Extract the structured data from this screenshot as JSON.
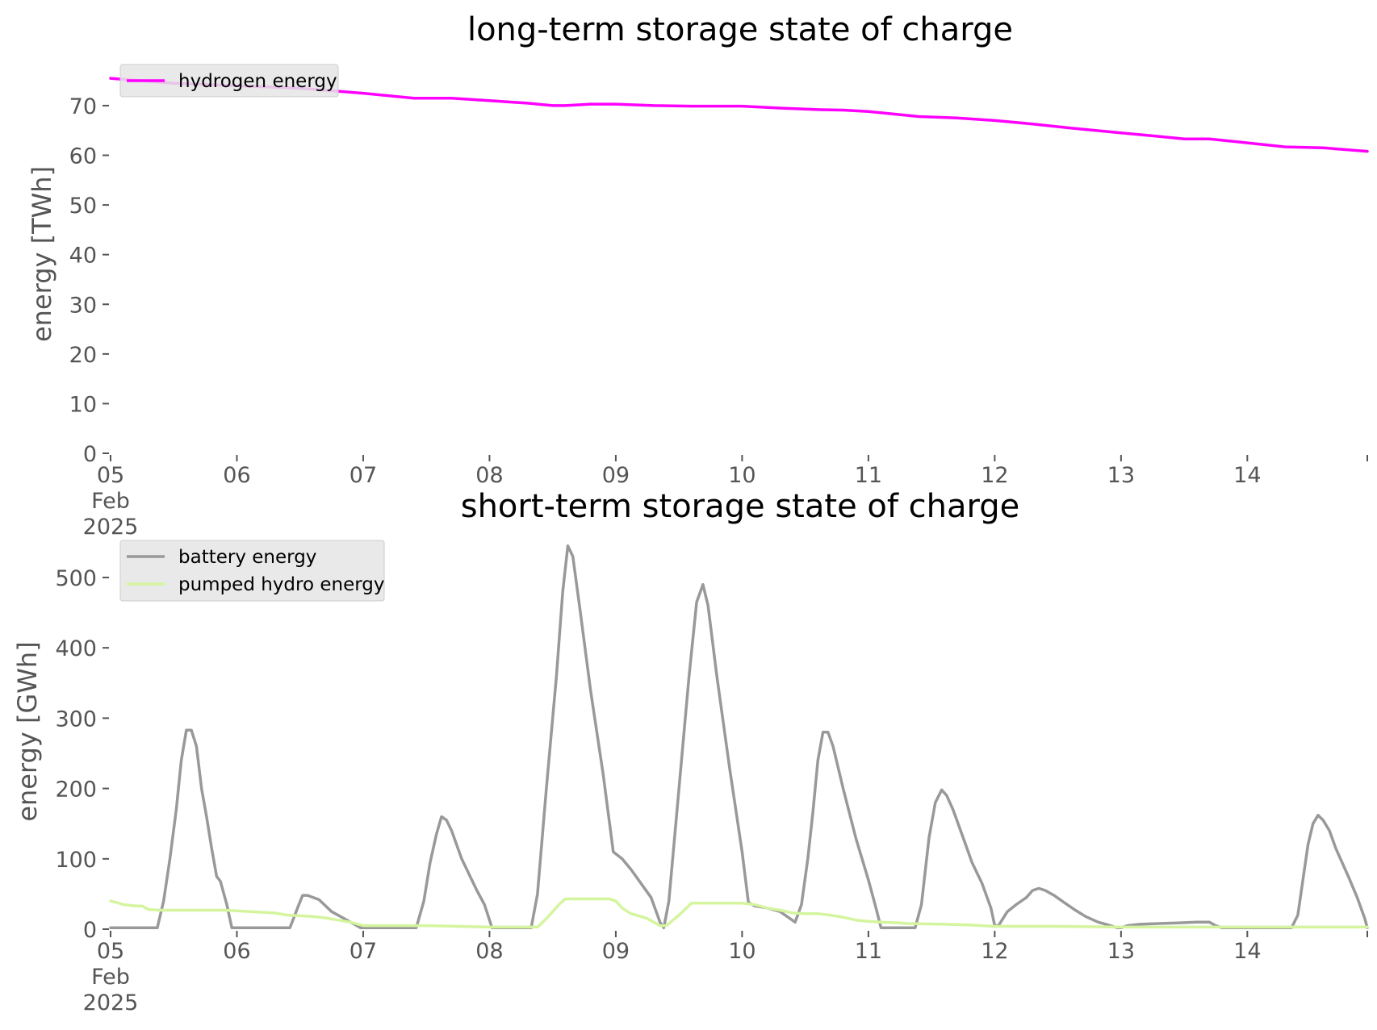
{
  "chart_data": [
    {
      "type": "line",
      "title": "long-term storage state of charge",
      "ylabel": "energy [TWh]",
      "xlabel": "",
      "ylim": [
        0,
        76
      ],
      "xlim": [
        0,
        9.95
      ],
      "x_unit": "days since 05 Feb 2025 00:00",
      "x_ticks": [
        {
          "x": 0,
          "lines": [
            "05",
            "Feb",
            "2025"
          ]
        },
        {
          "x": 1,
          "lines": [
            "06"
          ]
        },
        {
          "x": 2,
          "lines": [
            "07"
          ]
        },
        {
          "x": 3,
          "lines": [
            "08"
          ]
        },
        {
          "x": 4,
          "lines": [
            "09"
          ]
        },
        {
          "x": 5,
          "lines": [
            "10"
          ]
        },
        {
          "x": 6,
          "lines": [
            "11"
          ]
        },
        {
          "x": 7,
          "lines": [
            "12"
          ]
        },
        {
          "x": 8,
          "lines": [
            "13"
          ]
        },
        {
          "x": 9,
          "lines": [
            "14"
          ]
        }
      ],
      "y_ticks": [
        0,
        10,
        20,
        30,
        40,
        50,
        60,
        70
      ],
      "legend": "upper-left",
      "series": [
        {
          "name": "hydrogen energy",
          "color": "#ff00ff",
          "points": [
            [
              0,
              75.5
            ],
            [
              0.5,
              74.5
            ],
            [
              1,
              74.0
            ],
            [
              1.5,
              73.5
            ],
            [
              2,
              72.5
            ],
            [
              2.4,
              71.5
            ],
            [
              2.7,
              71.5
            ],
            [
              3,
              71.0
            ],
            [
              3.3,
              70.5
            ],
            [
              3.5,
              70.0
            ],
            [
              3.6,
              70.0
            ],
            [
              3.8,
              70.3
            ],
            [
              4,
              70.3
            ],
            [
              4.3,
              70.0
            ],
            [
              4.6,
              69.9
            ],
            [
              5.0,
              69.9
            ],
            [
              5.3,
              69.5
            ],
            [
              5.6,
              69.2
            ],
            [
              5.8,
              69.1
            ],
            [
              6.0,
              68.8
            ],
            [
              6.2,
              68.3
            ],
            [
              6.4,
              67.8
            ],
            [
              6.7,
              67.5
            ],
            [
              7.0,
              67.0
            ],
            [
              7.3,
              66.3
            ],
            [
              7.6,
              65.5
            ],
            [
              8.0,
              64.5
            ],
            [
              8.3,
              63.8
            ],
            [
              8.5,
              63.3
            ],
            [
              8.7,
              63.3
            ],
            [
              9.0,
              62.5
            ],
            [
              9.3,
              61.7
            ],
            [
              9.6,
              61.5
            ],
            [
              9.95,
              60.8
            ]
          ]
        }
      ]
    },
    {
      "type": "line",
      "title": "short-term storage state of charge",
      "ylabel": "energy [GWh]",
      "xlabel": "",
      "ylim": [
        0,
        555
      ],
      "xlim": [
        0,
        9.95
      ],
      "x_unit": "days since 05 Feb 2025 00:00",
      "x_ticks": [
        {
          "x": 0,
          "lines": [
            "05",
            "Feb",
            "2025"
          ]
        },
        {
          "x": 1,
          "lines": [
            "06"
          ]
        },
        {
          "x": 2,
          "lines": [
            "07"
          ]
        },
        {
          "x": 3,
          "lines": [
            "08"
          ]
        },
        {
          "x": 4,
          "lines": [
            "09"
          ]
        },
        {
          "x": 5,
          "lines": [
            "10"
          ]
        },
        {
          "x": 6,
          "lines": [
            "11"
          ]
        },
        {
          "x": 7,
          "lines": [
            "12"
          ]
        },
        {
          "x": 8,
          "lines": [
            "13"
          ]
        },
        {
          "x": 9,
          "lines": [
            "14"
          ]
        }
      ],
      "y_ticks": [
        0,
        100,
        200,
        300,
        400,
        500
      ],
      "legend": "upper-left",
      "series": [
        {
          "name": "battery energy",
          "color": "#999999",
          "points": [
            [
              0,
              2
            ],
            [
              0.37,
              2
            ],
            [
              0.42,
              40
            ],
            [
              0.47,
              100
            ],
            [
              0.52,
              170
            ],
            [
              0.56,
              240
            ],
            [
              0.6,
              283
            ],
            [
              0.64,
              283
            ],
            [
              0.68,
              260
            ],
            [
              0.72,
              200
            ],
            [
              0.76,
              160
            ],
            [
              0.8,
              115
            ],
            [
              0.84,
              75
            ],
            [
              0.87,
              68
            ],
            [
              0.92,
              35
            ],
            [
              0.96,
              2
            ],
            [
              1.42,
              2
            ],
            [
              1.48,
              30
            ],
            [
              1.52,
              48
            ],
            [
              1.56,
              48
            ],
            [
              1.65,
              42
            ],
            [
              1.75,
              25
            ],
            [
              1.85,
              15
            ],
            [
              1.92,
              8
            ],
            [
              1.98,
              2
            ],
            [
              2.42,
              2
            ],
            [
              2.48,
              40
            ],
            [
              2.53,
              95
            ],
            [
              2.58,
              135
            ],
            [
              2.62,
              160
            ],
            [
              2.66,
              155
            ],
            [
              2.7,
              140
            ],
            [
              2.78,
              100
            ],
            [
              2.9,
              55
            ],
            [
              2.96,
              35
            ],
            [
              3.02,
              2
            ],
            [
              3.33,
              2
            ],
            [
              3.38,
              50
            ],
            [
              3.45,
              200
            ],
            [
              3.53,
              360
            ],
            [
              3.58,
              480
            ],
            [
              3.62,
              545
            ],
            [
              3.66,
              530
            ],
            [
              3.72,
              450
            ],
            [
              3.8,
              340
            ],
            [
              3.9,
              220
            ],
            [
              3.98,
              110
            ],
            [
              4.05,
              100
            ],
            [
              4.12,
              85
            ],
            [
              4.2,
              65
            ],
            [
              4.28,
              45
            ],
            [
              4.35,
              10
            ],
            [
              4.38,
              2
            ],
            [
              4.42,
              40
            ],
            [
              4.5,
              200
            ],
            [
              4.58,
              360
            ],
            [
              4.64,
              465
            ],
            [
              4.69,
              490
            ],
            [
              4.73,
              460
            ],
            [
              4.8,
              360
            ],
            [
              4.9,
              230
            ],
            [
              5.0,
              110
            ],
            [
              5.05,
              38
            ],
            [
              5.1,
              33
            ],
            [
              5.2,
              30
            ],
            [
              5.3,
              25
            ],
            [
              5.38,
              15
            ],
            [
              5.42,
              10
            ],
            [
              5.47,
              35
            ],
            [
              5.52,
              100
            ],
            [
              5.56,
              165
            ],
            [
              5.6,
              240
            ],
            [
              5.64,
              280
            ],
            [
              5.68,
              280
            ],
            [
              5.72,
              260
            ],
            [
              5.8,
              200
            ],
            [
              5.9,
              130
            ],
            [
              6.0,
              70
            ],
            [
              6.06,
              30
            ],
            [
              6.1,
              2
            ],
            [
              6.37,
              2
            ],
            [
              6.42,
              35
            ],
            [
              6.48,
              130
            ],
            [
              6.53,
              180
            ],
            [
              6.58,
              198
            ],
            [
              6.62,
              190
            ],
            [
              6.67,
              170
            ],
            [
              6.75,
              130
            ],
            [
              6.82,
              95
            ],
            [
              6.9,
              65
            ],
            [
              6.97,
              30
            ],
            [
              7.0,
              5
            ],
            [
              7.03,
              5
            ],
            [
              7.1,
              25
            ],
            [
              7.17,
              35
            ],
            [
              7.25,
              45
            ],
            [
              7.3,
              55
            ],
            [
              7.35,
              58
            ],
            [
              7.4,
              55
            ],
            [
              7.47,
              48
            ],
            [
              7.55,
              38
            ],
            [
              7.63,
              28
            ],
            [
              7.72,
              18
            ],
            [
              7.82,
              10
            ],
            [
              7.9,
              6
            ],
            [
              7.97,
              2
            ],
            [
              8.0,
              2
            ],
            [
              8.05,
              5
            ],
            [
              8.15,
              7
            ],
            [
              8.3,
              8
            ],
            [
              8.45,
              9
            ],
            [
              8.6,
              10
            ],
            [
              8.7,
              10
            ],
            [
              8.75,
              5
            ],
            [
              8.8,
              2
            ],
            [
              9.35,
              2
            ],
            [
              9.4,
              20
            ],
            [
              9.44,
              70
            ],
            [
              9.48,
              120
            ],
            [
              9.52,
              150
            ],
            [
              9.56,
              162
            ],
            [
              9.6,
              155
            ],
            [
              9.65,
              140
            ],
            [
              9.7,
              115
            ],
            [
              9.75,
              95
            ],
            [
              9.8,
              75
            ],
            [
              9.87,
              45
            ],
            [
              9.93,
              15
            ],
            [
              9.95,
              2
            ]
          ]
        },
        {
          "name": "pumped hydro energy",
          "color": "#d4f59e",
          "points": [
            [
              0,
              40
            ],
            [
              0.05,
              38
            ],
            [
              0.1,
              35
            ],
            [
              0.2,
              33
            ],
            [
              0.25,
              33
            ],
            [
              0.3,
              28
            ],
            [
              0.4,
              27
            ],
            [
              0.8,
              27
            ],
            [
              0.9,
              27
            ],
            [
              1.0,
              26
            ],
            [
              1.2,
              24
            ],
            [
              1.3,
              23
            ],
            [
              1.4,
              20
            ],
            [
              1.5,
              19
            ],
            [
              1.6,
              18
            ],
            [
              1.7,
              16
            ],
            [
              1.8,
              13
            ],
            [
              1.9,
              10
            ],
            [
              2.0,
              5
            ],
            [
              2.5,
              5
            ],
            [
              3.0,
              3
            ],
            [
              3.3,
              3
            ],
            [
              3.38,
              3
            ],
            [
              3.45,
              15
            ],
            [
              3.55,
              35
            ],
            [
              3.6,
              43
            ],
            [
              3.7,
              43
            ],
            [
              3.95,
              43
            ],
            [
              4.0,
              40
            ],
            [
              4.05,
              30
            ],
            [
              4.12,
              22
            ],
            [
              4.2,
              18
            ],
            [
              4.25,
              15
            ],
            [
              4.3,
              10
            ],
            [
              4.35,
              5
            ],
            [
              4.4,
              5
            ],
            [
              4.5,
              20
            ],
            [
              4.6,
              37
            ],
            [
              4.7,
              37
            ],
            [
              5.0,
              37
            ],
            [
              5.1,
              35
            ],
            [
              5.2,
              30
            ],
            [
              5.3,
              27
            ],
            [
              5.4,
              23
            ],
            [
              5.5,
              22
            ],
            [
              5.6,
              22
            ],
            [
              5.7,
              20
            ],
            [
              5.8,
              17
            ],
            [
              5.9,
              13
            ],
            [
              6.0,
              11
            ],
            [
              6.1,
              10
            ],
            [
              6.25,
              9
            ],
            [
              6.3,
              8
            ],
            [
              6.6,
              7
            ],
            [
              6.8,
              6
            ],
            [
              7.0,
              4
            ],
            [
              7.5,
              4
            ],
            [
              8.0,
              3
            ],
            [
              8.5,
              3
            ],
            [
              9.0,
              3
            ],
            [
              9.5,
              3
            ],
            [
              9.95,
              3
            ]
          ]
        }
      ]
    }
  ]
}
